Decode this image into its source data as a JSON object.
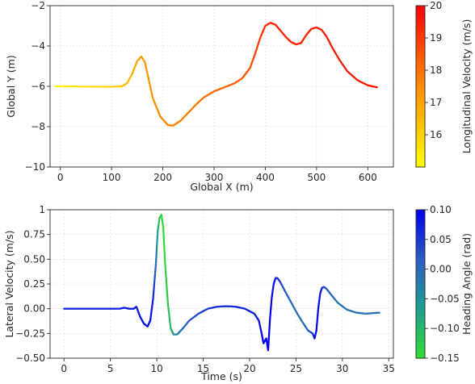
{
  "chart_data": [
    {
      "type": "line",
      "xlabel": "Global X (m)",
      "ylabel": "Global Y (m)",
      "xlim": [
        -20,
        650
      ],
      "ylim": [
        -10,
        -2
      ],
      "xticks": [
        0,
        100,
        200,
        300,
        400,
        500,
        600
      ],
      "yticks": [
        -10,
        -8,
        -6,
        -4,
        -2
      ],
      "grid": true,
      "colorbar": {
        "label": "Longitudinal Velocity (m/s)",
        "range": [
          15,
          20
        ],
        "ticks": [
          16,
          17,
          18,
          19,
          20
        ],
        "colormap": "yellow-orange-red",
        "colors": [
          "#ffff00",
          "#ff8c00",
          "#ff0000"
        ]
      },
      "series": [
        {
          "x": [
            -10,
            20,
            60,
            100,
            120,
            130,
            140,
            150,
            158,
            165,
            172,
            180,
            195,
            210,
            220,
            235,
            250,
            265,
            280,
            300,
            320,
            340,
            355,
            370,
            380,
            390,
            400,
            410,
            420,
            430,
            440,
            450,
            460,
            470,
            480,
            490,
            500,
            510,
            520,
            530,
            545,
            560,
            580,
            600,
            618
          ],
          "y": [
            -6.0,
            -6.0,
            -6.02,
            -6.02,
            -6.0,
            -5.85,
            -5.4,
            -4.75,
            -4.52,
            -4.8,
            -5.6,
            -6.55,
            -7.5,
            -7.92,
            -7.95,
            -7.7,
            -7.3,
            -6.9,
            -6.55,
            -6.25,
            -6.05,
            -5.85,
            -5.6,
            -5.1,
            -4.4,
            -3.6,
            -3.0,
            -2.85,
            -2.95,
            -3.25,
            -3.55,
            -3.8,
            -3.92,
            -3.85,
            -3.45,
            -3.15,
            -3.08,
            -3.2,
            -3.55,
            -4.05,
            -4.7,
            -5.25,
            -5.7,
            -5.95,
            -6.05
          ],
          "color_values": [
            15.2,
            15.5,
            15.8,
            16.0,
            16.2,
            16.5,
            16.8,
            17.0,
            17.1,
            17.2,
            17.3,
            17.4,
            17.5,
            17.6,
            17.6,
            17.7,
            17.8,
            17.9,
            18.0,
            18.1,
            18.2,
            18.3,
            18.4,
            18.6,
            18.8,
            19.0,
            19.2,
            19.3,
            19.3,
            19.3,
            19.3,
            19.4,
            19.4,
            19.4,
            19.4,
            19.5,
            19.5,
            19.5,
            19.5,
            19.5,
            19.6,
            19.6,
            19.6,
            19.7,
            19.7
          ]
        }
      ]
    },
    {
      "type": "line",
      "xlabel": "Time (s)",
      "ylabel": "Lateral Velocity (m/s)",
      "xlim": [
        -1.5,
        35.5
      ],
      "ylim": [
        -0.5,
        1.0
      ],
      "xticks": [
        0,
        5,
        10,
        15,
        20,
        25,
        30,
        35
      ],
      "yticks": [
        -0.5,
        -0.25,
        0.0,
        0.25,
        0.5,
        0.75,
        1.0
      ],
      "grid": true,
      "colorbar": {
        "label": "Heading Angle (rad)",
        "range": [
          -0.15,
          0.1
        ],
        "ticks": [
          -0.15,
          -0.1,
          -0.05,
          0.0,
          0.05,
          0.1
        ],
        "colormap": "green-blue",
        "colors": [
          "#33dd33",
          "#1e9e8f",
          "#2a5cc0",
          "#0000ee"
        ]
      },
      "series": [
        {
          "x": [
            0,
            2,
            4,
            6,
            6.5,
            7,
            7.5,
            7.8,
            8.2,
            8.6,
            9.0,
            9.3,
            9.6,
            9.9,
            10.1,
            10.3,
            10.5,
            10.7,
            10.9,
            11.2,
            11.5,
            11.8,
            12.2,
            12.8,
            13.5,
            14.5,
            15.5,
            16.5,
            17.5,
            18.5,
            19.5,
            20.5,
            21.0,
            21.3,
            21.5,
            21.8,
            22.0,
            22.2,
            22.4,
            22.6,
            22.8,
            23.0,
            23.3,
            23.8,
            24.5,
            25.2,
            25.8,
            26.3,
            26.8,
            27.0,
            27.2,
            27.4,
            27.6,
            27.8,
            28.0,
            28.3,
            28.8,
            29.5,
            30.5,
            31.5,
            32.5,
            34.0
          ],
          "y": [
            0.0,
            0.0,
            0.0,
            0.0,
            0.01,
            0.0,
            0.0,
            0.02,
            -0.08,
            -0.15,
            -0.18,
            -0.12,
            0.1,
            0.45,
            0.78,
            0.92,
            0.95,
            0.82,
            0.45,
            0.05,
            -0.2,
            -0.26,
            -0.26,
            -0.2,
            -0.12,
            -0.05,
            0.0,
            0.02,
            0.025,
            0.02,
            0.0,
            -0.05,
            -0.12,
            -0.25,
            -0.35,
            -0.3,
            -0.42,
            -0.1,
            0.12,
            0.25,
            0.31,
            0.31,
            0.27,
            0.18,
            0.06,
            -0.06,
            -0.15,
            -0.22,
            -0.25,
            -0.3,
            -0.22,
            0.0,
            0.15,
            0.21,
            0.22,
            0.2,
            0.14,
            0.06,
            -0.01,
            -0.04,
            -0.05,
            -0.04
          ],
          "color_values": [
            0.07,
            0.07,
            0.07,
            0.07,
            0.07,
            0.07,
            0.07,
            0.07,
            0.08,
            0.09,
            0.09,
            0.09,
            0.07,
            0.0,
            -0.08,
            -0.12,
            -0.14,
            -0.15,
            -0.14,
            -0.12,
            -0.1,
            -0.06,
            -0.03,
            0.0,
            0.02,
            0.04,
            0.05,
            0.06,
            0.06,
            0.06,
            0.07,
            0.07,
            0.08,
            0.09,
            0.1,
            0.1,
            0.1,
            0.1,
            0.09,
            0.08,
            0.07,
            0.06,
            0.04,
            0.02,
            0.0,
            -0.01,
            -0.01,
            0.01,
            0.05,
            0.08,
            0.09,
            0.09,
            0.08,
            0.06,
            0.04,
            0.02,
            0.0,
            -0.01,
            -0.02,
            -0.01,
            -0.01,
            -0.01
          ]
        }
      ]
    }
  ]
}
